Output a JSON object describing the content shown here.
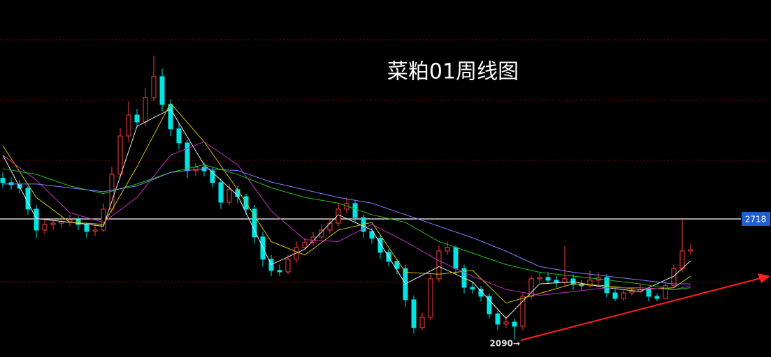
{
  "chart_data": {
    "type": "candlestick",
    "title": "菜粕01周线图",
    "ylim": [
      1999,
      3858
    ],
    "up_color": "#ff3c3c",
    "down_color": "#00e4e4",
    "candles": [
      [
        2930,
        2960,
        2880,
        2907
      ],
      [
        2907,
        2930,
        2870,
        2896
      ],
      [
        2896,
        2920,
        2850,
        2878
      ],
      [
        2878,
        2890,
        2740,
        2769
      ],
      [
        2769,
        2790,
        2620,
        2660
      ],
      [
        2660,
        2710,
        2640,
        2689
      ],
      [
        2689,
        2720,
        2660,
        2696
      ],
      [
        2696,
        2730,
        2670,
        2704
      ],
      [
        2704,
        2740,
        2680,
        2714
      ],
      [
        2714,
        2730,
        2660,
        2689
      ],
      [
        2689,
        2700,
        2620,
        2653
      ],
      [
        2653,
        2690,
        2630,
        2660
      ],
      [
        2660,
        2800,
        2650,
        2769
      ],
      [
        2769,
        2990,
        2750,
        2951
      ],
      [
        2951,
        3190,
        2930,
        3150
      ],
      [
        3150,
        3330,
        3120,
        3259
      ],
      [
        3259,
        3290,
        3190,
        3223
      ],
      [
        3223,
        3400,
        3200,
        3350
      ],
      [
        3350,
        3568,
        3330,
        3459
      ],
      [
        3459,
        3500,
        3280,
        3314
      ],
      [
        3314,
        3340,
        3150,
        3187
      ],
      [
        3187,
        3220,
        3080,
        3114
      ],
      [
        3114,
        3130,
        2930,
        2969
      ],
      [
        2969,
        3010,
        2940,
        2987
      ],
      [
        2987,
        3010,
        2940,
        2969
      ],
      [
        2969,
        2990,
        2880,
        2907
      ],
      [
        2907,
        2930,
        2770,
        2805
      ],
      [
        2805,
        2900,
        2790,
        2871
      ],
      [
        2871,
        2890,
        2800,
        2834
      ],
      [
        2834,
        2850,
        2740,
        2769
      ],
      [
        2769,
        2790,
        2590,
        2624
      ],
      [
        2624,
        2650,
        2470,
        2508
      ],
      [
        2508,
        2530,
        2420,
        2450
      ],
      [
        2450,
        2480,
        2420,
        2442
      ],
      [
        2442,
        2530,
        2430,
        2508
      ],
      [
        2508,
        2600,
        2490,
        2569
      ],
      [
        2569,
        2620,
        2560,
        2595
      ],
      [
        2595,
        2650,
        2580,
        2624
      ],
      [
        2624,
        2690,
        2610,
        2660
      ],
      [
        2660,
        2720,
        2640,
        2696
      ],
      [
        2696,
        2800,
        2680,
        2769
      ],
      [
        2769,
        2830,
        2750,
        2798
      ],
      [
        2798,
        2810,
        2700,
        2725
      ],
      [
        2725,
        2740,
        2620,
        2653
      ],
      [
        2653,
        2670,
        2590,
        2617
      ],
      [
        2617,
        2630,
        2510,
        2544
      ],
      [
        2544,
        2560,
        2470,
        2497
      ],
      [
        2497,
        2510,
        2430,
        2460
      ],
      [
        2460,
        2480,
        2260,
        2297
      ],
      [
        2297,
        2320,
        2120,
        2152
      ],
      [
        2152,
        2230,
        2140,
        2206
      ],
      [
        2206,
        2430,
        2190,
        2406
      ],
      [
        2406,
        2580,
        2390,
        2551
      ],
      [
        2551,
        2600,
        2530,
        2569
      ],
      [
        2569,
        2580,
        2430,
        2460
      ],
      [
        2460,
        2480,
        2330,
        2362
      ],
      [
        2362,
        2390,
        2330,
        2352
      ],
      [
        2352,
        2370,
        2290,
        2315
      ],
      [
        2315,
        2330,
        2200,
        2224
      ],
      [
        2224,
        2240,
        2140,
        2170
      ],
      [
        2170,
        2210,
        2150,
        2181
      ],
      [
        2181,
        2200,
        2090,
        2159
      ],
      [
        2159,
        2330,
        2140,
        2315
      ],
      [
        2315,
        2420,
        2300,
        2406
      ],
      [
        2406,
        2440,
        2390,
        2413
      ],
      [
        2413,
        2440,
        2380,
        2399
      ],
      [
        2399,
        2420,
        2360,
        2388
      ],
      [
        2388,
        2577,
        2370,
        2406
      ],
      [
        2406,
        2430,
        2350,
        2377
      ],
      [
        2377,
        2400,
        2350,
        2370
      ],
      [
        2370,
        2450,
        2360,
        2399
      ],
      [
        2399,
        2440,
        2380,
        2413
      ],
      [
        2413,
        2430,
        2310,
        2333
      ],
      [
        2333,
        2350,
        2290,
        2304
      ],
      [
        2304,
        2350,
        2290,
        2333
      ],
      [
        2333,
        2360,
        2320,
        2341
      ],
      [
        2341,
        2380,
        2330,
        2351
      ],
      [
        2351,
        2360,
        2290,
        2315
      ],
      [
        2315,
        2330,
        2290,
        2304
      ],
      [
        2304,
        2390,
        2300,
        2370
      ],
      [
        2370,
        2480,
        2360,
        2460
      ],
      [
        2460,
        2718,
        2440,
        2551
      ],
      [
        2551,
        2590,
        2530,
        2558
      ]
    ],
    "ma_lines": {
      "x": [
        0,
        4,
        8,
        12,
        16,
        20,
        24,
        28,
        32,
        36,
        40,
        44,
        48,
        52,
        56,
        60,
        64,
        68,
        72,
        76,
        80,
        82
      ],
      "series": [
        {
          "color": "#e8e8e8",
          "values": [
            3050,
            2720,
            2700,
            2680,
            3200,
            3290,
            3000,
            2840,
            2480,
            2560,
            2740,
            2660,
            2380,
            2470,
            2390,
            2200,
            2380,
            2390,
            2360,
            2340,
            2420,
            2500
          ]
        },
        {
          "color": "#d4c000",
          "values": [
            3100,
            2830,
            2700,
            2690,
            2990,
            3320,
            3120,
            2870,
            2600,
            2530,
            2660,
            2700,
            2440,
            2430,
            2450,
            2280,
            2330,
            2380,
            2370,
            2350,
            2360,
            2420
          ]
        },
        {
          "color": "#c030c0",
          "values": [
            3050,
            2920,
            2750,
            2700,
            2830,
            3050,
            3120,
            3000,
            2760,
            2610,
            2600,
            2690,
            2600,
            2500,
            2420,
            2350,
            2320,
            2340,
            2360,
            2360,
            2350,
            2370
          ]
        },
        {
          "color": "#20c020",
          "values": [
            2980,
            2950,
            2890,
            2850,
            2900,
            2960,
            3000,
            2950,
            2880,
            2830,
            2800,
            2740,
            2700,
            2600,
            2540,
            2480,
            2440,
            2420,
            2400,
            2380,
            2350,
            2360
          ]
        },
        {
          "color": "#8080ff",
          "values": [
            2900,
            2900,
            2880,
            2860,
            2890,
            2960,
            2980,
            2970,
            2910,
            2870,
            2830,
            2800,
            2740,
            2680,
            2620,
            2550,
            2470,
            2440,
            2420,
            2400,
            2380,
            2380
          ]
        }
      ]
    },
    "level": 2718,
    "low_marker": {
      "value": 2090,
      "label": "2090→"
    }
  }
}
